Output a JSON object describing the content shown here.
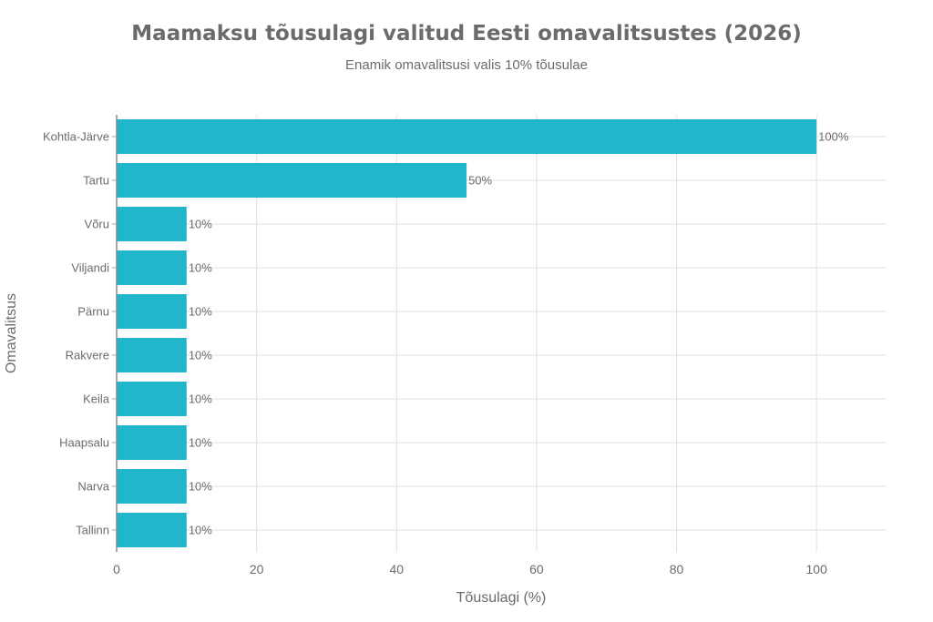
{
  "chart_data": {
    "type": "bar",
    "orientation": "horizontal",
    "title": "Maamaksu tõusulagi valitud Eesti omavalitsustes (2026)",
    "subtitle": "Enamik omavalitsusi valis 10% tõusulae",
    "xlabel": "Tõusulagi (%)",
    "ylabel": "Omavalitsus",
    "categories": [
      "Kohtla-Järve",
      "Tartu",
      "Võru",
      "Viljandi",
      "Pärnu",
      "Rakvere",
      "Keila",
      "Haapsalu",
      "Narva",
      "Tallinn"
    ],
    "values": [
      100,
      50,
      10,
      10,
      10,
      10,
      10,
      10,
      10,
      10
    ],
    "data_labels": [
      "100%",
      "50%",
      "10%",
      "10%",
      "10%",
      "10%",
      "10%",
      "10%",
      "10%",
      "10%"
    ],
    "xlim": [
      0,
      110
    ],
    "xticks": [
      0,
      20,
      40,
      60,
      80,
      100
    ],
    "grid": true,
    "bar_color": "#20b7cc"
  }
}
